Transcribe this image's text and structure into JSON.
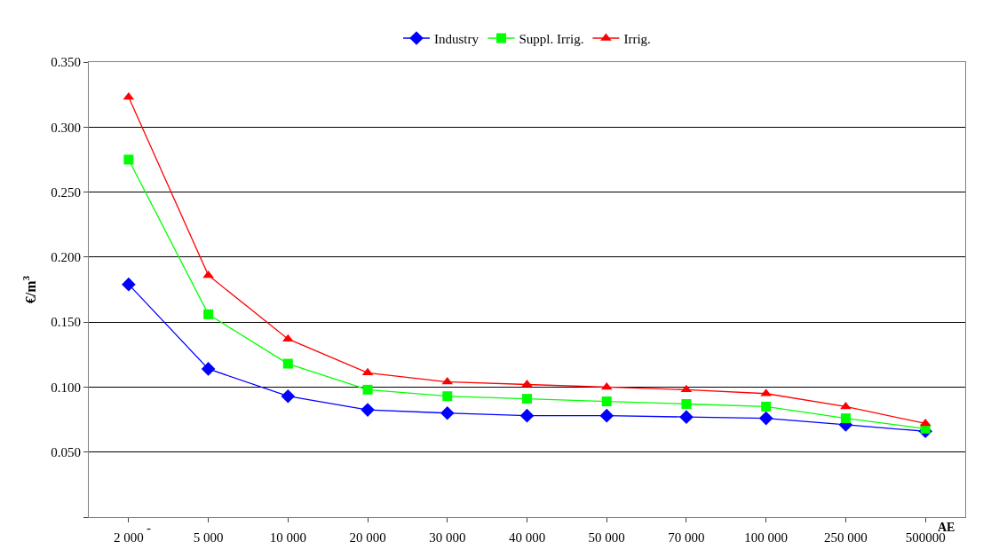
{
  "chart_data": {
    "type": "line",
    "ylabel": "€/m$^{3}$",
    "xlabel": "AE",
    "categories": [
      "2 000",
      "5 000",
      "10 000",
      "20 000",
      "30 000",
      "40 000",
      "50 000",
      "70 000",
      "100 000",
      "250 000",
      "500000"
    ],
    "ylim": [
      0,
      0.35
    ],
    "yticks": [
      {
        "value": 0,
        "label": null
      },
      {
        "value": 0.05,
        "label": "0.050"
      },
      {
        "value": 0.1,
        "label": "0.100"
      },
      {
        "value": 0.15,
        "label": "0.150"
      },
      {
        "value": 0.2,
        "label": "0.200"
      },
      {
        "value": 0.25,
        "label": "0.250"
      },
      {
        "value": 0.3,
        "label": "0.300"
      },
      {
        "value": 0.35,
        "label": "0.350"
      }
    ],
    "grid": "y",
    "legend": "top",
    "annotations": [
      "-"
    ],
    "series": [
      {
        "name": "Industry",
        "color": "#0000ff",
        "marker": "diamond",
        "values": [
          0.179,
          0.114,
          0.093,
          0.0825,
          0.08,
          0.078,
          0.078,
          0.077,
          0.076,
          0.071,
          0.066
        ]
      },
      {
        "name": "Suppl. Irrig.",
        "color": "#00ff00",
        "marker": "square",
        "values": [
          0.275,
          0.156,
          0.118,
          0.098,
          0.093,
          0.091,
          0.089,
          0.087,
          0.085,
          0.076,
          0.068
        ]
      },
      {
        "name": "Irrig.",
        "color": "#ff0000",
        "marker": "triangle",
        "values": [
          0.323,
          0.186,
          0.137,
          0.111,
          0.104,
          0.102,
          0.1,
          0.098,
          0.095,
          0.085,
          0.072
        ]
      }
    ]
  }
}
